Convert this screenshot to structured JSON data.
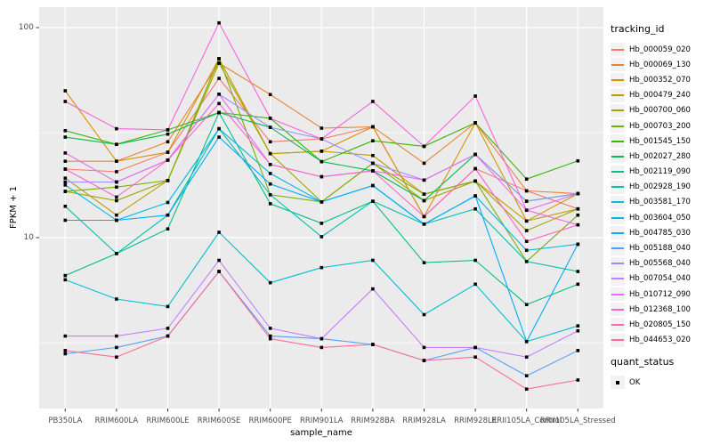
{
  "chart_data": {
    "type": "line",
    "title": "",
    "xlabel": "sample_name",
    "ylabel": "FPKM + 1",
    "y_scale": "log10",
    "ylim": [
      1.5,
      126
    ],
    "y_major_ticks": [
      10,
      100
    ],
    "y_minor_gridlines": [
      3.162,
      31.62
    ],
    "grid": true,
    "panel_background": "#ebebeb",
    "gridline_color": "#ffffff",
    "tick_label_color": "#4d4d4d",
    "point_shape": "filled-square",
    "point_color": "#000000",
    "legend_position": "right",
    "categories": [
      "PB350LA",
      "RRIM600LA",
      "RRIM600LE",
      "RRIM600SE",
      "RRIM600PE",
      "RRIM901LA",
      "RRIM928BA",
      "RRIM928LA",
      "RRIM928LE",
      "RRII105LA_Control",
      "RRII105LA_Stressed"
    ],
    "series": [
      {
        "name": "Hb_000059_020",
        "color": "#F8766D",
        "values": [
          21.2,
          20.6,
          25.5,
          57.3,
          28.6,
          29.5,
          33.7,
          12.6,
          21.3,
          16.7,
          13.7
        ]
      },
      {
        "name": "Hb_000069_130",
        "color": "#EA8331",
        "values": [
          23.1,
          23.1,
          28.6,
          67.7,
          48.0,
          33.2,
          33.7,
          22.6,
          35.2,
          16.7,
          16.2
        ]
      },
      {
        "name": "Hb_000352_070",
        "color": "#D89000",
        "values": [
          50.0,
          23.1,
          25.5,
          71.1,
          25.1,
          25.8,
          33.7,
          12.6,
          35.2,
          12.0,
          16.2
        ]
      },
      {
        "name": "Hb_000479_240",
        "color": "#C09B00",
        "values": [
          19.2,
          12.8,
          18.7,
          71.1,
          25.1,
          25.8,
          24.6,
          16.1,
          18.6,
          12.0,
          13.7
        ]
      },
      {
        "name": "Hb_000700_060",
        "color": "#A3A500",
        "values": [
          16.6,
          15.0,
          18.7,
          67.7,
          25.1,
          14.8,
          22.6,
          15.0,
          18.6,
          10.8,
          13.7
        ]
      },
      {
        "name": "Hb_000703_200",
        "color": "#7CAE00",
        "values": [
          16.6,
          17.4,
          18.7,
          71.1,
          16.0,
          14.8,
          22.6,
          16.1,
          18.6,
          7.7,
          12.8
        ]
      },
      {
        "name": "Hb_001545_150",
        "color": "#39B600",
        "values": [
          32.3,
          27.8,
          32.6,
          39.4,
          37.0,
          23.0,
          28.9,
          27.2,
          35.2,
          19.0,
          23.2
        ]
      },
      {
        "name": "Hb_002027_280",
        "color": "#00BB4E",
        "values": [
          30.1,
          27.8,
          31.1,
          39.4,
          33.5,
          23.0,
          20.8,
          15.0,
          24.9,
          14.9,
          16.2
        ]
      },
      {
        "name": "Hb_002119_090",
        "color": "#00C087",
        "values": [
          6.6,
          8.4,
          11.0,
          39.4,
          14.5,
          11.7,
          14.9,
          7.6,
          7.8,
          4.8,
          6.0
        ]
      },
      {
        "name": "Hb_002928_190",
        "color": "#00C0B2",
        "values": [
          14.1,
          8.4,
          12.8,
          33.0,
          16.0,
          10.1,
          14.9,
          11.6,
          13.7,
          7.7,
          6.9
        ]
      },
      {
        "name": "Hb_003581_170",
        "color": "#00BFD4",
        "values": [
          6.3,
          5.1,
          4.7,
          10.6,
          6.1,
          7.2,
          7.8,
          4.3,
          6.0,
          3.2,
          3.8
        ]
      },
      {
        "name": "Hb_003604_050",
        "color": "#00B8E5",
        "values": [
          17.8,
          12.1,
          14.7,
          33.0,
          20.2,
          14.8,
          17.7,
          11.6,
          15.8,
          8.7,
          9.3
        ]
      },
      {
        "name": "Hb_004785_030",
        "color": "#00ACFC",
        "values": [
          12.1,
          12.1,
          12.8,
          30.1,
          18.0,
          14.8,
          17.7,
          11.6,
          15.8,
          3.2,
          9.3
        ]
      },
      {
        "name": "Hb_005188_040",
        "color": "#529EFF",
        "values": [
          2.8,
          3.0,
          3.4,
          6.9,
          3.4,
          3.3,
          3.1,
          2.6,
          3.0,
          2.2,
          2.9
        ]
      },
      {
        "name": "Hb_005568_040",
        "color": "#9590FF",
        "values": [
          18.4,
          18.4,
          23.4,
          48.2,
          33.5,
          29.5,
          22.6,
          18.8,
          24.9,
          14.9,
          16.2
        ]
      },
      {
        "name": "Hb_007054_040",
        "color": "#C77CFF",
        "values": [
          3.4,
          3.4,
          3.7,
          7.8,
          3.7,
          3.3,
          5.7,
          3.0,
          3.0,
          2.7,
          3.6
        ]
      },
      {
        "name": "Hb_010712_090",
        "color": "#E76BF3",
        "values": [
          25.3,
          18.4,
          23.4,
          48.2,
          22.3,
          19.5,
          20.8,
          18.8,
          24.9,
          13.5,
          16.2
        ]
      },
      {
        "name": "Hb_012368_100",
        "color": "#FA62DB",
        "values": [
          44.5,
          33.0,
          32.6,
          105.3,
          37.0,
          29.5,
          44.5,
          27.2,
          47.2,
          13.5,
          11.5
        ]
      },
      {
        "name": "Hb_020805_150",
        "color": "#FF61C9",
        "values": [
          21.2,
          15.6,
          23.4,
          43.5,
          22.3,
          19.5,
          20.8,
          12.6,
          21.3,
          9.6,
          11.5
        ]
      },
      {
        "name": "Hb_044653_020",
        "color": "#FF6A98",
        "values": [
          2.9,
          2.7,
          3.4,
          6.9,
          3.3,
          3.0,
          3.1,
          2.6,
          2.7,
          1.9,
          2.1
        ]
      }
    ],
    "legends": {
      "color_legend_title": "tracking_id",
      "shape_legend_title": "quant_status",
      "shape_legend_entries": [
        "OK"
      ]
    }
  }
}
